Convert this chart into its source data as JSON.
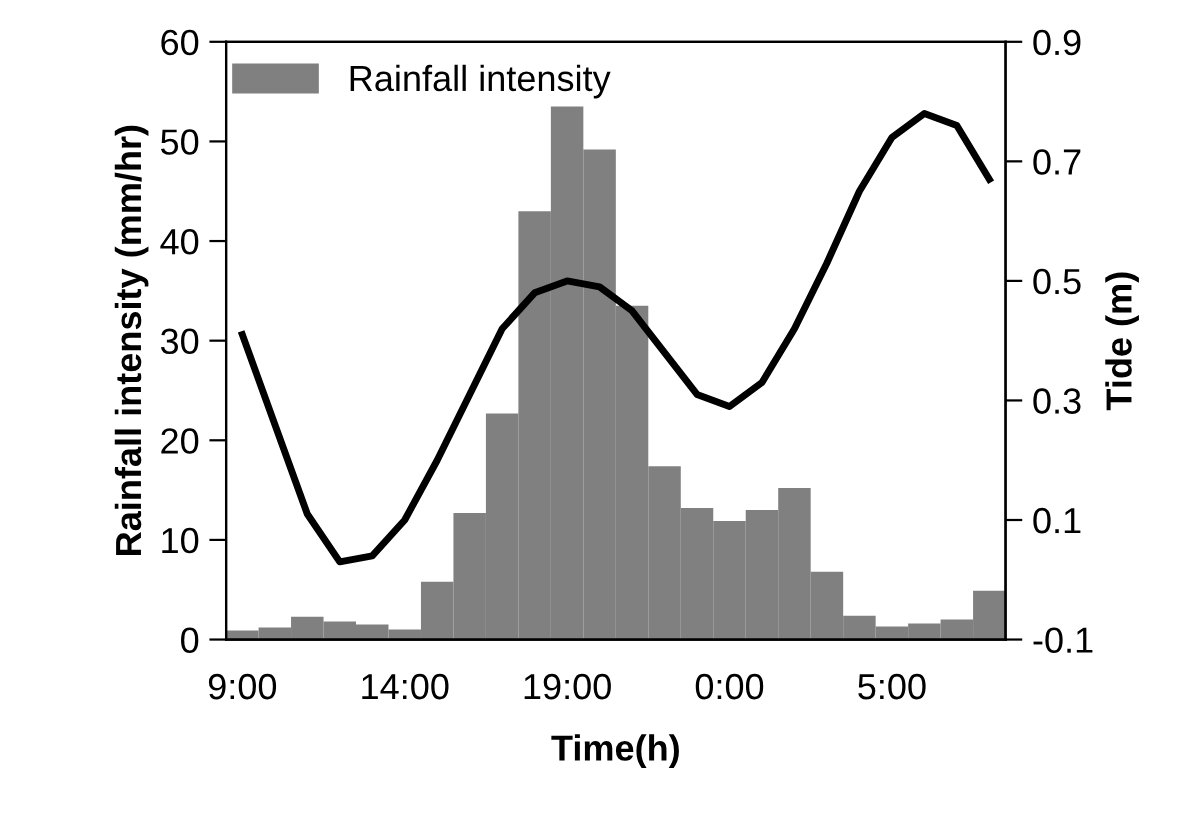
{
  "chart_data": {
    "type": "bar",
    "xlabel": "Time(h)",
    "ylabel": "Rainfall intensity (mm/hr)",
    "y2label": "Tide (m)",
    "categories": [
      "9:00",
      null,
      null,
      null,
      null,
      "14:00",
      null,
      null,
      null,
      null,
      "19:00",
      null,
      null,
      null,
      null,
      "0:00",
      null,
      null,
      null,
      null,
      "5:00",
      null,
      null,
      null
    ],
    "series": [
      {
        "name": "Rainfall intensity",
        "color": "#808080",
        "values": [
          0.9,
          1.2,
          2.3,
          1.8,
          1.5,
          1.0,
          5.8,
          12.7,
          22.7,
          43.0,
          53.5,
          49.2,
          33.5,
          17.4,
          13.2,
          11.9,
          13.0,
          15.2,
          6.8,
          2.4,
          1.3,
          1.6,
          2.0,
          4.9
        ]
      },
      {
        "type": "line",
        "axis": "y2",
        "color": "#000000",
        "values": [
          0.41,
          0.26,
          0.11,
          0.03,
          0.04,
          0.1,
          0.2,
          0.31,
          0.42,
          0.48,
          0.5,
          0.49,
          0.45,
          0.38,
          0.31,
          0.29,
          0.33,
          0.42,
          0.53,
          0.65,
          0.74,
          0.78,
          0.76,
          0.67
        ]
      }
    ],
    "ylim": [
      0,
      60
    ],
    "yticks": [
      0,
      10,
      20,
      30,
      40,
      50,
      60
    ],
    "y2lim": [
      -0.1,
      0.9
    ],
    "y2ticks": [
      -0.1,
      0.1,
      0.3,
      0.5,
      0.7,
      0.9
    ],
    "grid": false,
    "legend": "top left",
    "marker": "none",
    "line_style": "solid"
  }
}
